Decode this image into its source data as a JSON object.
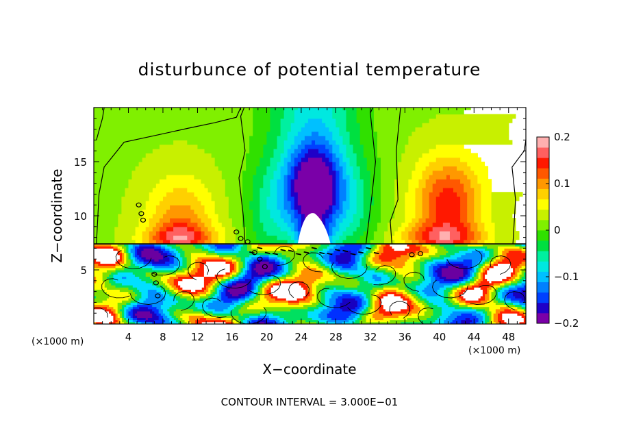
{
  "chart_data": {
    "type": "heatmap",
    "title": "disturbunce of potential temperature",
    "xlabel": "X−coordinate",
    "ylabel": "Z−coordinate",
    "x_unit_left": "(×1000 m)",
    "x_unit_right": "(×1000 m)",
    "x_range": [
      0,
      50
    ],
    "y_range": [
      0,
      20
    ],
    "x_ticks": [
      4,
      8,
      12,
      16,
      20,
      24,
      28,
      32,
      36,
      40,
      44,
      48
    ],
    "x_tick_labels": [
      "4",
      "8",
      "12",
      "16",
      "20",
      "24",
      "28",
      "32",
      "36",
      "40",
      "44",
      "48"
    ],
    "y_ticks": [
      5,
      10,
      15
    ],
    "y_tick_labels": [
      "5",
      "10",
      "15"
    ],
    "interface_height": 7.4,
    "colorbar": {
      "range": [
        -0.2,
        0.2
      ],
      "tick_values": [
        0.2,
        0.1,
        0,
        -0.1,
        -0.2
      ],
      "tick_labels": [
        "0.2",
        "0.1",
        "0",
        "−0.1",
        "−0.2"
      ],
      "colors": [
        "#7a00a8",
        "#1f00c8",
        "#0040ff",
        "#0080ff",
        "#00c0ff",
        "#00e8e0",
        "#00f0a0",
        "#00e040",
        "#30e000",
        "#80f000",
        "#c8f000",
        "#ffff00",
        "#ffd000",
        "#ff9800",
        "#ff5800",
        "#ff1800",
        "#ff6060",
        "#ffb0b0"
      ]
    },
    "contour_note": "CONTOUR INTERVAL = 3.000E−01",
    "upper_field_features": [
      {
        "kind": "cold",
        "x": 25.5,
        "z": 12,
        "amplitude": -0.19
      },
      {
        "kind": "cold",
        "x": 20.5,
        "z": 10,
        "amplitude": -0.06
      },
      {
        "kind": "cold",
        "x": 30.0,
        "z": 10,
        "amplitude": -0.05
      },
      {
        "kind": "warm",
        "x": 41.0,
        "z": 11,
        "amplitude": 0.13
      },
      {
        "kind": "warm",
        "x": 10.0,
        "z": 9,
        "amplitude": 0.09
      },
      {
        "kind": "warm",
        "x": 49.5,
        "z": 18,
        "amplitude": 0.03
      }
    ]
  }
}
